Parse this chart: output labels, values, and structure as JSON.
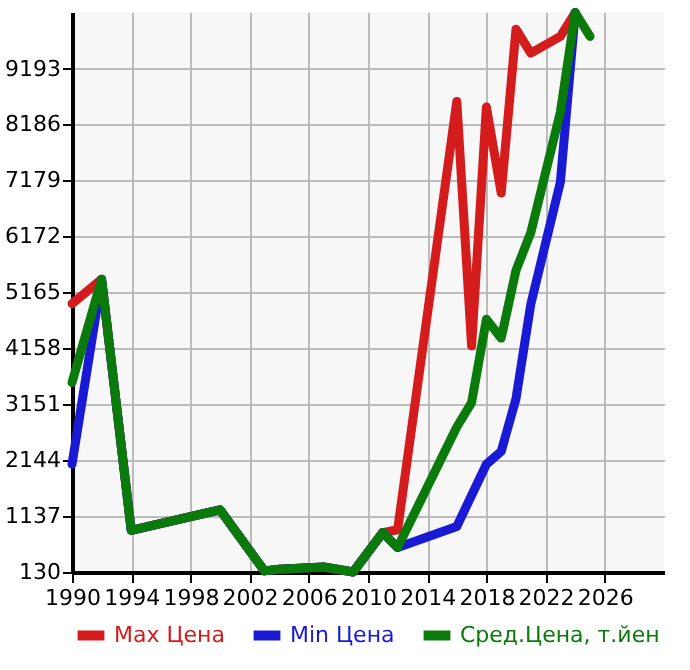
{
  "chart_data": {
    "type": "line",
    "x": [
      1990,
      1992,
      1994,
      2000,
      2003,
      2004,
      2007,
      2009,
      2011,
      2012,
      2016,
      2017,
      2018,
      2019,
      2020,
      2021,
      2023,
      2024,
      2025
    ],
    "series": [
      {
        "name": "Max Цена",
        "color": "#d41c1c",
        "x": [
          1990,
          1992,
          1994,
          2000,
          2003,
          2004,
          2007,
          2009,
          2011,
          2012,
          2016,
          2017,
          2018,
          2019,
          2020,
          2021,
          2023,
          2024
        ],
        "values": [
          4960,
          5400,
          880,
          1250,
          150,
          180,
          220,
          130,
          840,
          890,
          8600,
          4200,
          8500,
          6950,
          9900,
          9470,
          9770,
          10200
        ]
      },
      {
        "name": "Min Цена",
        "color": "#1a1ad4",
        "x": [
          1990,
          1992,
          1994,
          2000,
          2003,
          2004,
          2007,
          2009,
          2011,
          2012,
          2016,
          2018,
          2019,
          2020,
          2021,
          2023,
          2024
        ],
        "values": [
          2070,
          5400,
          880,
          1250,
          150,
          180,
          220,
          130,
          840,
          570,
          950,
          2070,
          2300,
          3250,
          4950,
          7150,
          10200
        ]
      },
      {
        "name": "Сред.Цена, т.йен",
        "color": "#0a7a0a",
        "values": [
          3540,
          5400,
          880,
          1250,
          150,
          180,
          220,
          130,
          840,
          570,
          2740,
          3180,
          4680,
          4340,
          5560,
          6240,
          8410,
          10200,
          9770
        ]
      }
    ],
    "xlim": [
      1990,
      2030
    ],
    "xticks": [
      1990,
      1994,
      1998,
      2002,
      2006,
      2010,
      2014,
      2018,
      2022,
      2026
    ],
    "ylim": [
      130,
      10210
    ],
    "yticks": [
      130,
      1137,
      2144,
      3151,
      4158,
      5165,
      6172,
      7179,
      8186,
      9193
    ],
    "grid": true,
    "legend": "bottom"
  }
}
